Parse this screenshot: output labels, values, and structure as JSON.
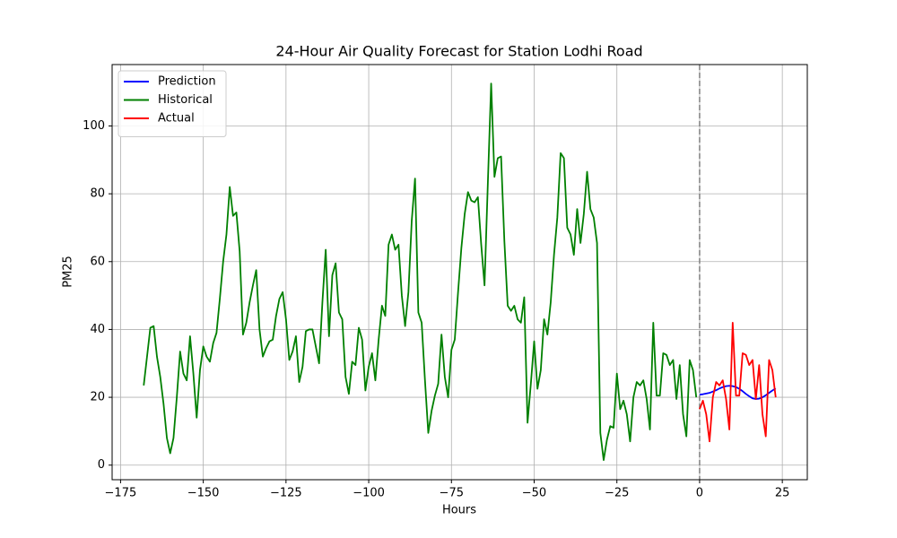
{
  "chart_data": {
    "type": "line",
    "title": "24-Hour Air Quality Forecast for Station Lodhi Road",
    "x_label": "Hours",
    "y_label": "PM25",
    "xlim": [
      -177.55,
      32.55
    ],
    "ylim": [
      -4.3,
      118.1
    ],
    "xticks": [
      {
        "value": -175,
        "label": "−175"
      },
      {
        "value": -150,
        "label": "−150"
      },
      {
        "value": -125,
        "label": "−125"
      },
      {
        "value": -100,
        "label": "−100"
      },
      {
        "value": -75,
        "label": "−75"
      },
      {
        "value": -50,
        "label": "−50"
      },
      {
        "value": -25,
        "label": "−25"
      },
      0,
      25
    ],
    "yticks": [
      0,
      20,
      40,
      60,
      80,
      100
    ],
    "grid": true,
    "legend_position": "upper-left",
    "vline": {
      "x": 0,
      "color": "gray",
      "style": "dashed"
    },
    "series": [
      {
        "name": "Prediction",
        "color": "blue",
        "x": [
          0,
          1,
          2,
          3,
          4,
          5,
          6,
          7,
          8,
          9,
          10,
          11,
          12,
          13,
          14,
          15,
          16,
          17,
          18,
          19,
          20,
          21,
          22,
          23
        ],
        "values": [
          20.8,
          20.9,
          21.1,
          21.3,
          21.7,
          22.1,
          22.6,
          23.0,
          23.3,
          23.4,
          23.3,
          23.0,
          22.5,
          21.8,
          21.0,
          20.3,
          19.7,
          19.5,
          19.6,
          20.0,
          20.6,
          21.3,
          22.0,
          22.6
        ]
      },
      {
        "name": "Historical",
        "color": "green",
        "x": [
          -168,
          -167,
          -166,
          -165,
          -164,
          -163,
          -162,
          -161,
          -160,
          -159,
          -158,
          -157,
          -156,
          -155,
          -154,
          -153,
          -152,
          -151,
          -150,
          -149,
          -148,
          -147,
          -146,
          -145,
          -144,
          -143,
          -142,
          -141,
          -140,
          -139,
          -138,
          -137,
          -136,
          -135,
          -134,
          -133,
          -132,
          -131,
          -130,
          -129,
          -128,
          -127,
          -126,
          -125,
          -124,
          -123,
          -122,
          -121,
          -120,
          -119,
          -118,
          -117,
          -116,
          -115,
          -114,
          -113,
          -112,
          -111,
          -110,
          -109,
          -108,
          -107,
          -106,
          -105,
          -104,
          -103,
          -102,
          -101,
          -100,
          -99,
          -98,
          -97,
          -96,
          -95,
          -94,
          -93,
          -92,
          -91,
          -90,
          -89,
          -88,
          -87,
          -86,
          -85,
          -84,
          -83,
          -82,
          -81,
          -80,
          -79,
          -78,
          -77,
          -76,
          -75,
          -74,
          -73,
          -72,
          -71,
          -70,
          -69,
          -68,
          -67,
          -66,
          -65,
          -64,
          -63,
          -62,
          -61,
          -60,
          -59,
          -58,
          -57,
          -56,
          -55,
          -54,
          -53,
          -52,
          -51,
          -50,
          -49,
          -48,
          -47,
          -46,
          -45,
          -44,
          -43,
          -42,
          -41,
          -40,
          -39,
          -38,
          -37,
          -36,
          -35,
          -34,
          -33,
          -32,
          -31,
          -30,
          -29,
          -28,
          -27,
          -26,
          -25,
          -24,
          -23,
          -22,
          -21,
          -20,
          -19,
          -18,
          -17,
          -16,
          -15,
          -14,
          -13,
          -12,
          -11,
          -10,
          -9,
          -8,
          -7,
          -6,
          -5,
          -4,
          -3,
          -2,
          -1
        ],
        "values": [
          23.5,
          32,
          40.5,
          41,
          32,
          26,
          18,
          8,
          3.5,
          8,
          20,
          33.5,
          27,
          25,
          38,
          27,
          14,
          28,
          35,
          32,
          30.5,
          36,
          39,
          49,
          60,
          68,
          82,
          73.5,
          74.5,
          63,
          38.5,
          42,
          48,
          53,
          57.5,
          40,
          32,
          34.5,
          36.5,
          37,
          44,
          49,
          51,
          43,
          31,
          33.5,
          38,
          24.5,
          29,
          39.5,
          40,
          40,
          35,
          30,
          48,
          63.5,
          38,
          56,
          59.5,
          45,
          43,
          26,
          21,
          30.5,
          29.5,
          40.5,
          37,
          22,
          29,
          33,
          25,
          37,
          47,
          44,
          65,
          68,
          63.5,
          65,
          50,
          41,
          51,
          72,
          84.5,
          45,
          42,
          25,
          9.5,
          16,
          20.5,
          24,
          38.5,
          26,
          20,
          34,
          37,
          51,
          64,
          74,
          80.5,
          78,
          77.5,
          79,
          65,
          53,
          83,
          112.5,
          85,
          90.5,
          91,
          66,
          47,
          45.5,
          47,
          43,
          42,
          49.5,
          12.5,
          24,
          36.5,
          22.5,
          28,
          43,
          38.5,
          48,
          62,
          73,
          92,
          90.5,
          70,
          68,
          62,
          75.5,
          65.5,
          74,
          86.5,
          75.5,
          73,
          65.5,
          9.5,
          1.5,
          7.5,
          11.5,
          11,
          27,
          16.5,
          19,
          15,
          7,
          20,
          24.5,
          23.5,
          25,
          19.5,
          10.5,
          42,
          20.5,
          20.5,
          33,
          32.5,
          29.5,
          31,
          19.5,
          29.5,
          15,
          8.5,
          31,
          28,
          20
        ]
      },
      {
        "name": "Actual",
        "color": "red",
        "x": [
          0,
          1,
          2,
          3,
          4,
          5,
          6,
          7,
          8,
          9,
          10,
          11,
          12,
          13,
          14,
          15,
          16,
          17,
          18,
          19,
          20,
          21,
          22,
          23
        ],
        "values": [
          16.5,
          19,
          15,
          7,
          20,
          24.5,
          23.5,
          25,
          19.5,
          10.5,
          42,
          20.5,
          20.5,
          33,
          32.5,
          29.5,
          31,
          19.5,
          29.5,
          15,
          8.5,
          31,
          28,
          20
        ]
      }
    ]
  }
}
